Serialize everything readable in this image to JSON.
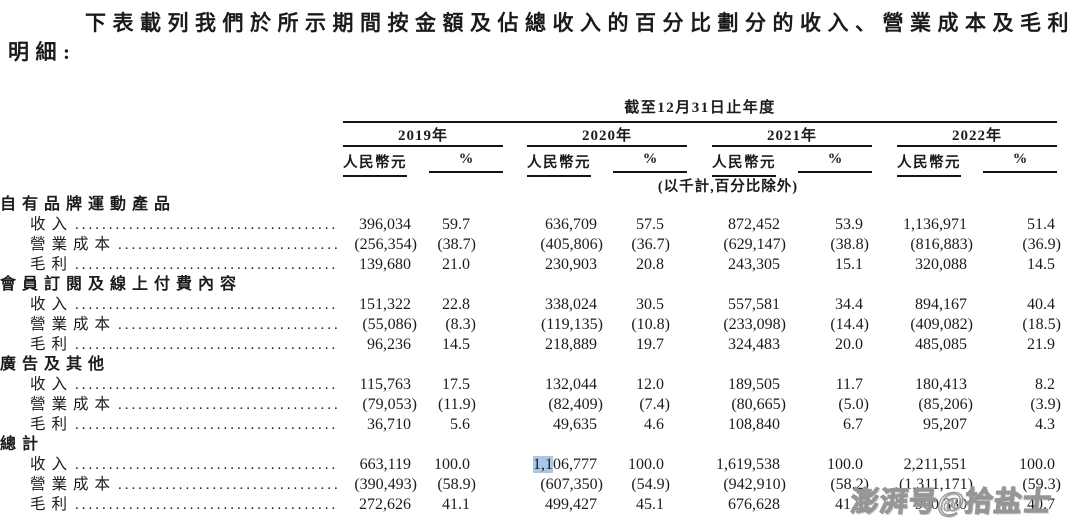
{
  "intro": {
    "line1": "下表載列我們於所示期間按金額及佔總收入的百分比劃分的收入、營業成本及毛利",
    "line2": "明細:"
  },
  "table": {
    "period_header": "截至12月31日止年度",
    "unit_note": "(以千計,百分比除外)",
    "year_groups": [
      {
        "year": "2019年",
        "amount_header": "人民幣元",
        "pct_header": "%"
      },
      {
        "year": "2020年",
        "amount_header": "人民幣元",
        "pct_header": "%"
      },
      {
        "year": "2021年",
        "amount_header": "人民幣元",
        "pct_header": "%"
      },
      {
        "year": "2022年",
        "amount_header": "人民幣元",
        "pct_header": "%"
      }
    ],
    "sections": [
      {
        "title": "自有品牌運動產品",
        "rows": [
          {
            "label": "收入",
            "values": [
              "396,034",
              "59.7",
              "636,709",
              "57.5",
              "872,452",
              "53.9",
              "1,136,971",
              "51.4"
            ]
          },
          {
            "label": "營業成本",
            "values": [
              "(256,354)",
              "(38.7)",
              "(405,806)",
              "(36.7)",
              "(629,147)",
              "(38.8)",
              "(816,883)",
              "(36.9)"
            ]
          },
          {
            "label": "毛利",
            "values": [
              "139,680",
              "21.0",
              "230,903",
              "20.8",
              "243,305",
              "15.1",
              "320,088",
              "14.5"
            ]
          }
        ]
      },
      {
        "title": "會員訂閱及線上付費內容",
        "rows": [
          {
            "label": "收入",
            "values": [
              "151,322",
              "22.8",
              "338,024",
              "30.5",
              "557,581",
              "34.4",
              "894,167",
              "40.4"
            ]
          },
          {
            "label": "營業成本",
            "values": [
              "(55,086)",
              "(8.3)",
              "(119,135)",
              "(10.8)",
              "(233,098)",
              "(14.4)",
              "(409,082)",
              "(18.5)"
            ]
          },
          {
            "label": "毛利",
            "values": [
              "96,236",
              "14.5",
              "218,889",
              "19.7",
              "324,483",
              "20.0",
              "485,085",
              "21.9"
            ]
          }
        ]
      },
      {
        "title": "廣告及其他",
        "rows": [
          {
            "label": "收入",
            "values": [
              "115,763",
              "17.5",
              "132,044",
              "12.0",
              "189,505",
              "11.7",
              "180,413",
              "8.2"
            ]
          },
          {
            "label": "營業成本",
            "values": [
              "(79,053)",
              "(11.9)",
              "(82,409)",
              "(7.4)",
              "(80,665)",
              "(5.0)",
              "(85,206)",
              "(3.9)"
            ]
          },
          {
            "label": "毛利",
            "values": [
              "36,710",
              "5.6",
              "49,635",
              "4.6",
              "108,840",
              "6.7",
              "95,207",
              "4.3"
            ]
          }
        ]
      },
      {
        "title": "總計",
        "rows": [
          {
            "label": "收入",
            "values": [
              "663,119",
              "100.0",
              "1,106,777",
              "100.0",
              "1,619,538",
              "100.0",
              "2,211,551",
              "100.0"
            ],
            "highlight": {
              "index": 2,
              "prefix": "1,1"
            }
          },
          {
            "label": "營業成本",
            "values": [
              "(390,493)",
              "(58.9)",
              "(607,350)",
              "(54.9)",
              "(942,910)",
              "(58.2)",
              "(1,311,171)",
              "(59.3)"
            ]
          },
          {
            "label": "毛利",
            "values": [
              "272,626",
              "41.1",
              "499,427",
              "45.1",
              "676,628",
              "41.8",
              "900,380",
              "40.7"
            ]
          }
        ]
      }
    ]
  },
  "watermark": {
    "text": "澎湃号@拾盐士"
  },
  "colors": {
    "text": "#1b1b1b",
    "rule": "#141414",
    "selection_highlight": "#a9c7e8",
    "watermark_gray": "#969696"
  }
}
